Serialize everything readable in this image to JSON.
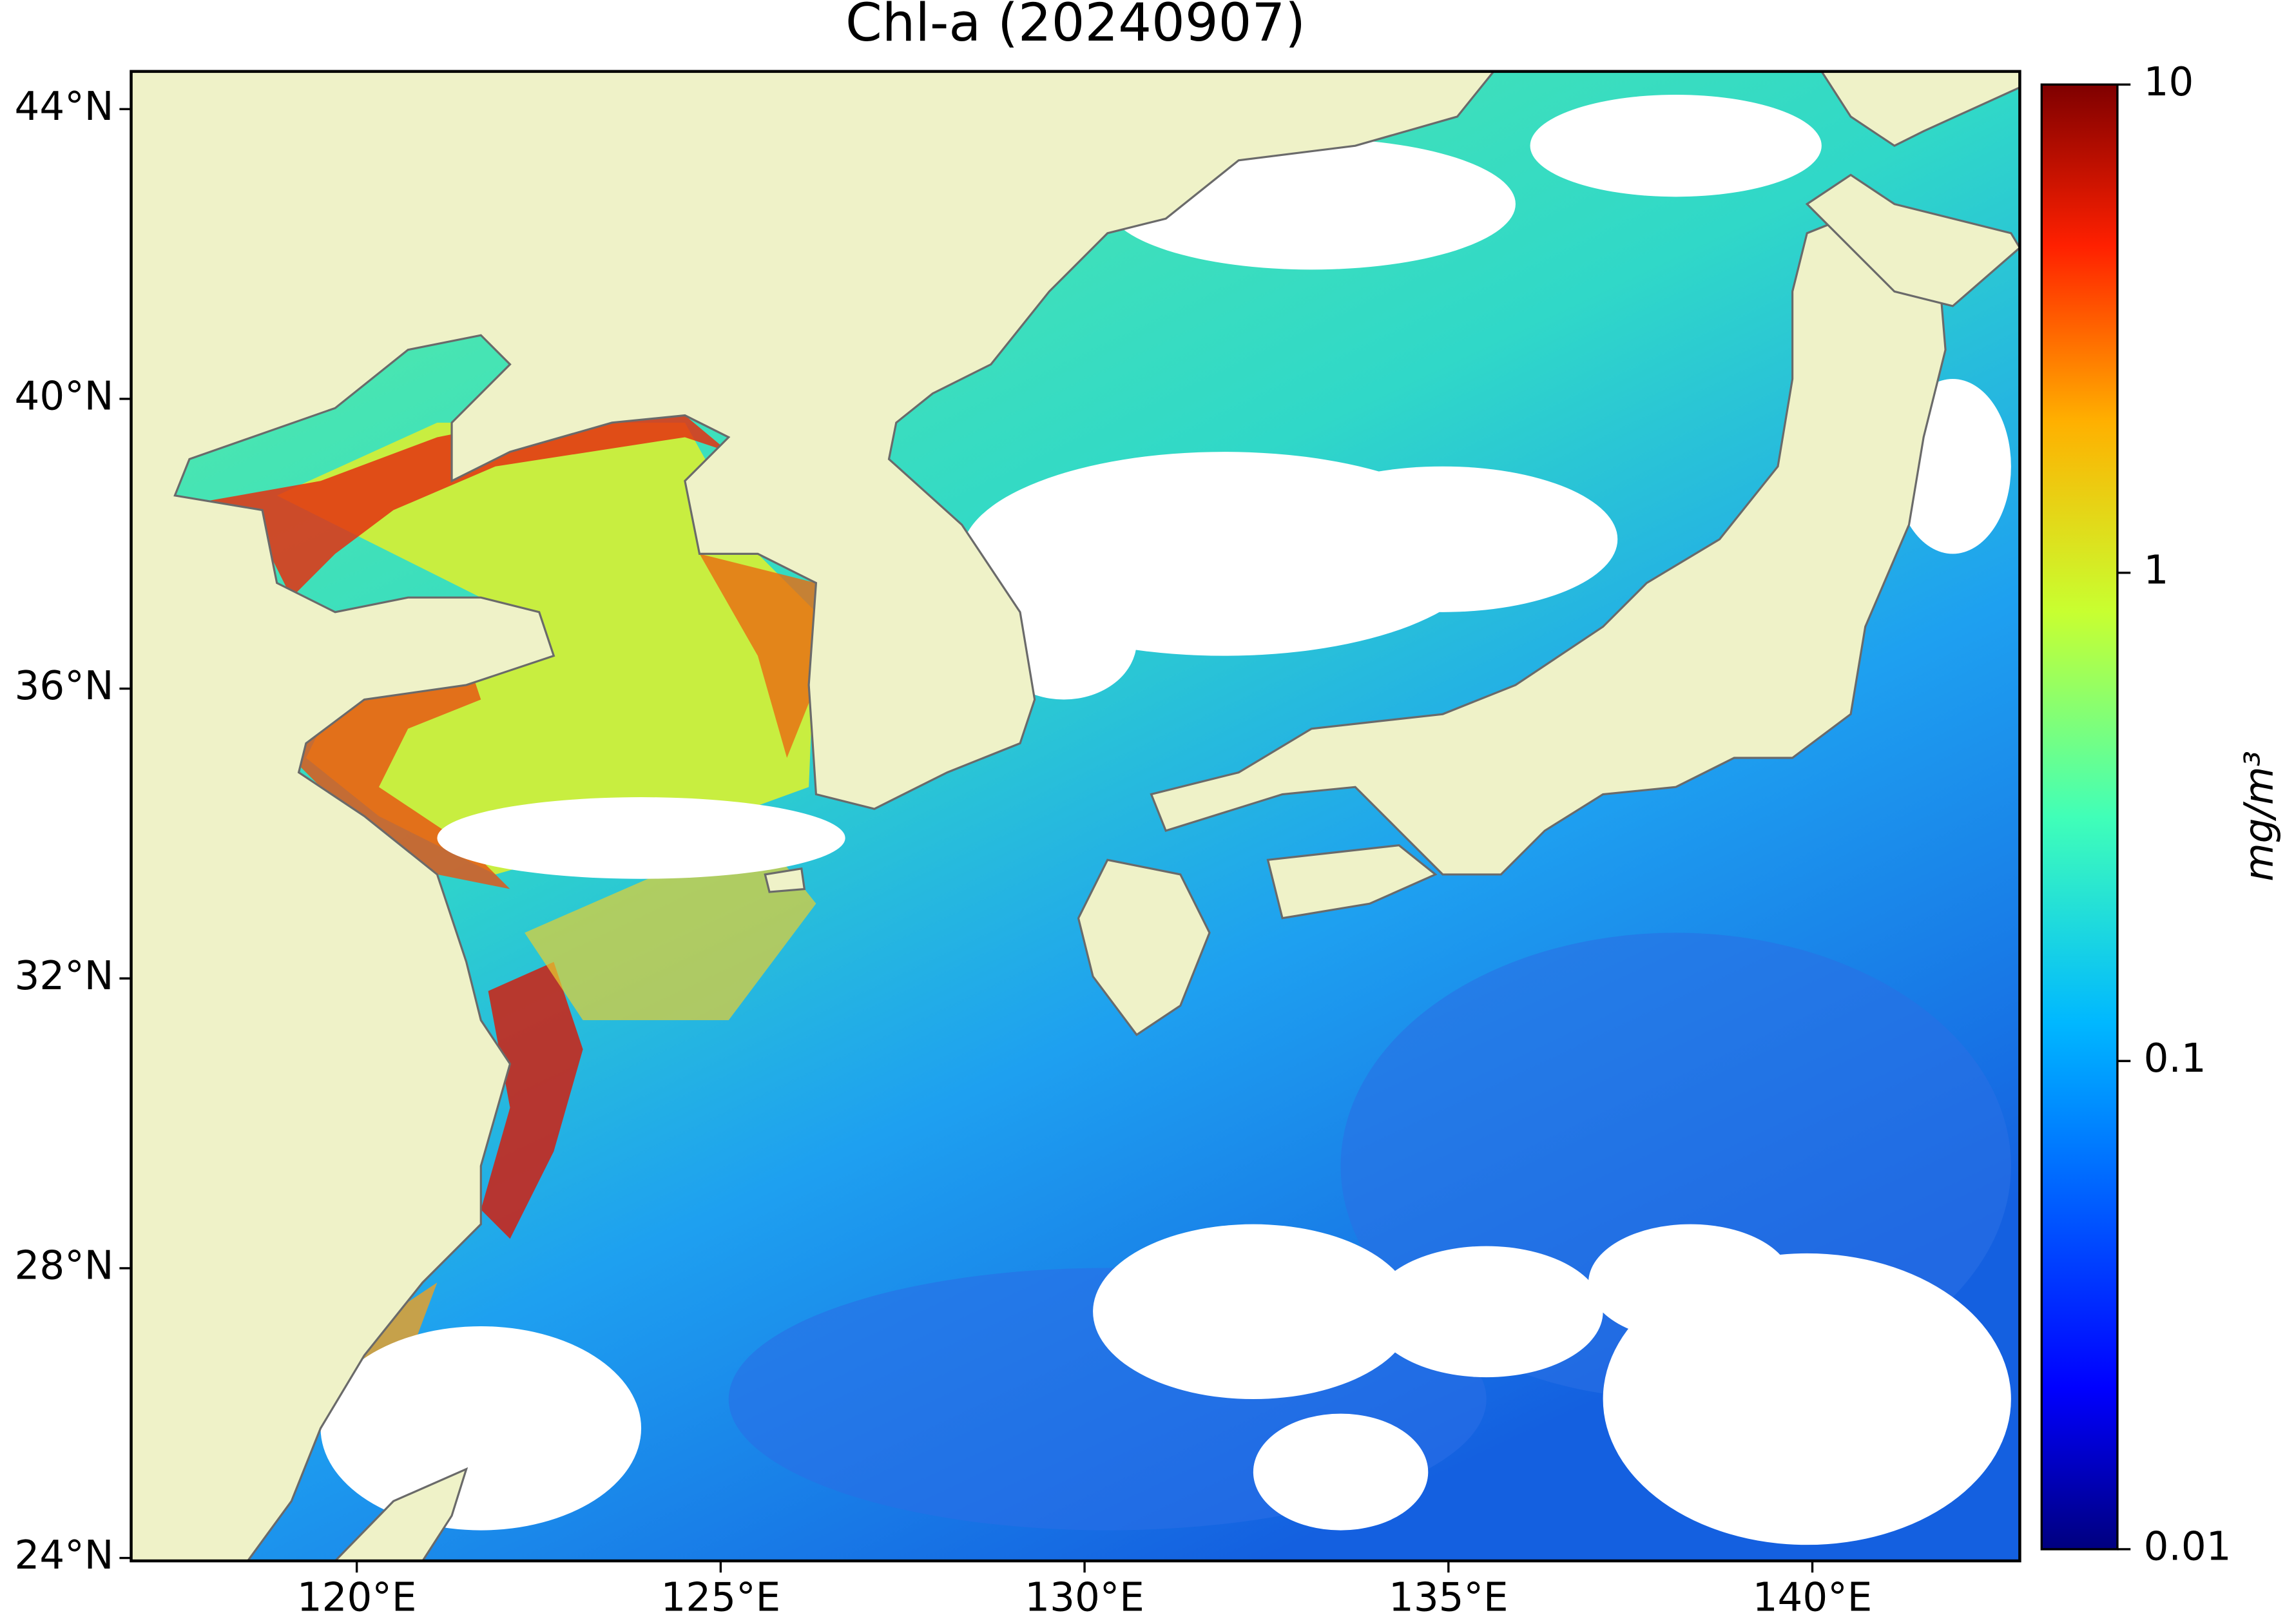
{
  "chart_data": {
    "type": "map",
    "title": "Chl-a (20240907)",
    "xlim": [
      116.9,
      142.85
    ],
    "ylim": [
      23.96,
      44.52
    ],
    "xticks": [
      {
        "value": 120,
        "label": "120°E"
      },
      {
        "value": 125,
        "label": "125°E"
      },
      {
        "value": 130,
        "label": "130°E"
      },
      {
        "value": 135,
        "label": "135°E"
      },
      {
        "value": 140,
        "label": "140°E"
      }
    ],
    "yticks": [
      {
        "value": 24,
        "label": "24°N"
      },
      {
        "value": 28,
        "label": "28°N"
      },
      {
        "value": 32,
        "label": "32°N"
      },
      {
        "value": 36,
        "label": "36°N"
      },
      {
        "value": 40,
        "label": "40°N"
      },
      {
        "value": 44,
        "label": "44°N"
      }
    ],
    "colorbar": {
      "label": "mg/m³",
      "lim": [
        0.01,
        10
      ],
      "ticks": [
        0.01,
        0.1,
        1,
        10
      ],
      "scale": "log",
      "colormap": "jet"
    }
  }
}
